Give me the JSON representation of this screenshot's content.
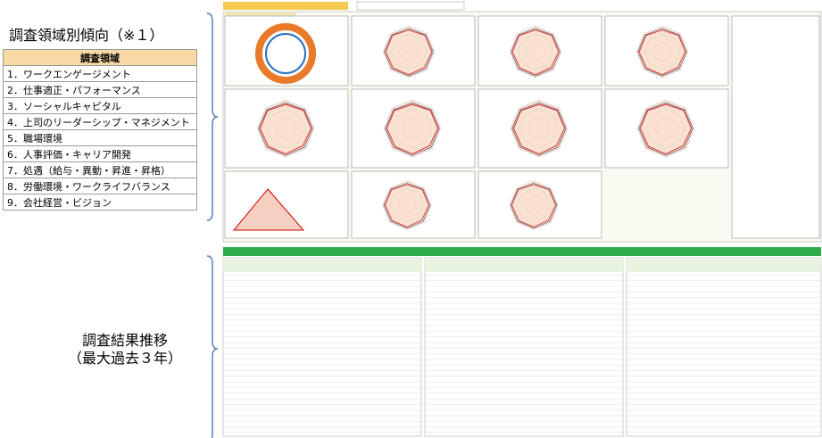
{
  "left_panel": {
    "title": "調査領域別傾向（※１）",
    "table": {
      "header": "調査領域",
      "rows": [
        "1．ワークエンゲージメント",
        "2．仕事適正・パフォーマンス",
        "3．ソーシャルキャピタル",
        "4．上司のリーダーシップ・マネジメント",
        "5．職場環境",
        "6．人事評価・キャリア開発",
        "7．処遇（給与・異動・昇進・昇格）",
        "8．労働環境・ワークライフバランス",
        "9．会社経営・ビジョン"
      ]
    }
  },
  "bottom_label": {
    "lines": [
      "調査結果推移",
      "（最大過去３年）"
    ]
  }
}
